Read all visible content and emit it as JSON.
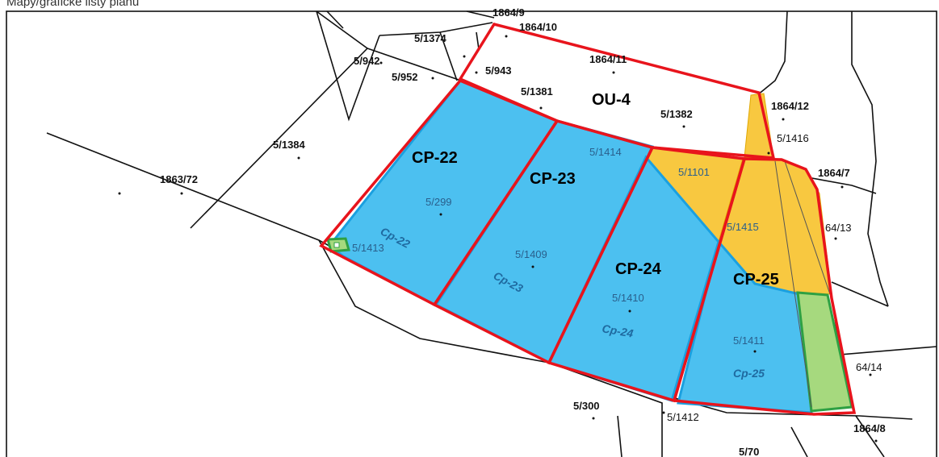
{
  "caption": "Mapy/grafické listy plánu",
  "zones": [
    {
      "id": "cp22",
      "label": "CP-22",
      "inner": "Cp-22"
    },
    {
      "id": "cp23",
      "label": "CP-23",
      "inner": "Cp-23"
    },
    {
      "id": "cp24",
      "label": "CP-24",
      "inner": "Cp-24"
    },
    {
      "id": "cp25",
      "label": "CP-25",
      "inner": "Cp-25"
    },
    {
      "id": "ou4",
      "label": "OU-4"
    }
  ],
  "parcels_inside": [
    "5/299",
    "5/1413",
    "5/1409",
    "5/1414",
    "5/1101",
    "5/1410",
    "5/1415",
    "5/1411",
    "5/1416"
  ],
  "parcels_outside": [
    "1864/9",
    "1864/10",
    "5/1374",
    "5/942",
    "5/952",
    "5/943",
    "1864/11",
    "5/1381",
    "5/1382",
    "1864/12",
    "5/1384",
    "1863/72",
    "1864/7",
    "64/13",
    "64/14",
    "5/300",
    "5/1412",
    "1864/8",
    "5/70"
  ],
  "colors": {
    "boundary": "#e8141c",
    "blue_fill": "#4cc0f0",
    "blue_edge": "#1aa0e0",
    "yellow_fill": "#f8c840",
    "green_fill": "#a6d97e",
    "green_edge": "#2ea043",
    "line": "#111111"
  }
}
